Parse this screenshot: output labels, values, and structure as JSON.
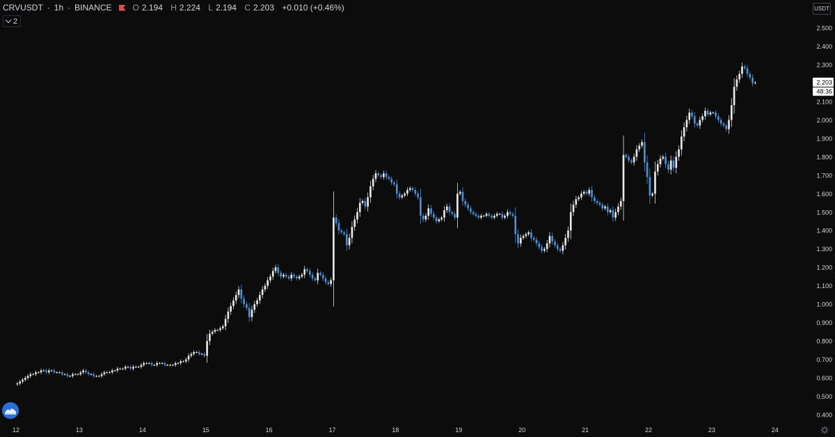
{
  "legend": {
    "symbol": "CRVUSDT",
    "interval": "1h",
    "exchange": "BINANCE",
    "separator": "·",
    "open_label": "O",
    "open": "2.194",
    "high_label": "H",
    "high": "2.224",
    "low_label": "L",
    "low": "2.194",
    "close_label": "C",
    "close": "2.203",
    "change": "+0.010 (+0.46%)"
  },
  "indicator_toggle": {
    "count": "2"
  },
  "currency_label": "USDT",
  "last_price": {
    "price": "2.203",
    "countdown": "48:36"
  },
  "icons": {
    "logo": "tradingview-logo-icon",
    "flag": "flag-icon",
    "chevron": "chevron-down-icon",
    "settings": "gear-icon"
  },
  "colors": {
    "background": "#0c0c0d",
    "up_candle": "#e8e8e8",
    "down_candle": "#4a90d9",
    "text": "#d1d4dc",
    "flag": "#e04f4f"
  },
  "chart_data": {
    "type": "candlestick",
    "title": "",
    "xlabel": "",
    "ylabel": "",
    "ylim": [
      0.38,
      2.55
    ],
    "y_ticks": [
      "0.400",
      "0.500",
      "0.600",
      "0.700",
      "0.800",
      "0.900",
      "1.000",
      "1.100",
      "1.200",
      "1.300",
      "1.400",
      "1.500",
      "1.600",
      "1.700",
      "1.800",
      "1.900",
      "2.000",
      "2.100",
      "2.200",
      "2.300",
      "2.400",
      "2.500"
    ],
    "x_ticks": [
      "12",
      "13",
      "14",
      "15",
      "16",
      "17",
      "18",
      "19",
      "20",
      "21",
      "22",
      "23",
      "24"
    ],
    "grid": false,
    "approx_hourly_closes_by_day": [
      {
        "day": "12",
        "closes": [
          0.57,
          0.58,
          0.59,
          0.6,
          0.61,
          0.62,
          0.62,
          0.63,
          0.63,
          0.64,
          0.64,
          0.63,
          0.64,
          0.64,
          0.63,
          0.63,
          0.63,
          0.62,
          0.62,
          0.61,
          0.61,
          0.62,
          0.62,
          0.62
        ]
      },
      {
        "day": "13",
        "closes": [
          0.63,
          0.64,
          0.63,
          0.62,
          0.62,
          0.61,
          0.61,
          0.61,
          0.62,
          0.63,
          0.63,
          0.63,
          0.64,
          0.64,
          0.65,
          0.65,
          0.65,
          0.66,
          0.66,
          0.65,
          0.66,
          0.66,
          0.66,
          0.67
        ]
      },
      {
        "day": "14",
        "closes": [
          0.68,
          0.68,
          0.68,
          0.67,
          0.67,
          0.68,
          0.68,
          0.68,
          0.67,
          0.67,
          0.67,
          0.67,
          0.68,
          0.68,
          0.69,
          0.69,
          0.7,
          0.72,
          0.73,
          0.74,
          0.74,
          0.73,
          0.73,
          0.72
        ]
      },
      {
        "day": "15",
        "closes": [
          0.8,
          0.84,
          0.85,
          0.86,
          0.86,
          0.87,
          0.88,
          0.92,
          0.96,
          0.99,
          1.02,
          1.05,
          1.08,
          1.03,
          1.0,
          0.98,
          0.93,
          0.97,
          1.0,
          1.02,
          1.05,
          1.08,
          1.1,
          1.13
        ]
      },
      {
        "day": "16",
        "closes": [
          1.15,
          1.18,
          1.2,
          1.17,
          1.15,
          1.16,
          1.15,
          1.14,
          1.16,
          1.15,
          1.14,
          1.15,
          1.16,
          1.19,
          1.18,
          1.16,
          1.14,
          1.13,
          1.17,
          1.16,
          1.14,
          1.12,
          1.11,
          1.13
        ]
      },
      {
        "day": "17",
        "closes": [
          1.47,
          1.44,
          1.4,
          1.39,
          1.38,
          1.32,
          1.36,
          1.42,
          1.46,
          1.5,
          1.55,
          1.56,
          1.53,
          1.58,
          1.64,
          1.68,
          1.71,
          1.7,
          1.69,
          1.71,
          1.69,
          1.68,
          1.66,
          1.65
        ]
      },
      {
        "day": "18",
        "closes": [
          1.6,
          1.58,
          1.59,
          1.6,
          1.62,
          1.63,
          1.62,
          1.6,
          1.58,
          1.48,
          1.46,
          1.48,
          1.52,
          1.49,
          1.47,
          1.45,
          1.46,
          1.47,
          1.51,
          1.53,
          1.5,
          1.49,
          1.47,
          1.6
        ]
      },
      {
        "day": "19",
        "closes": [
          1.61,
          1.56,
          1.54,
          1.52,
          1.5,
          1.49,
          1.48,
          1.47,
          1.48,
          1.48,
          1.49,
          1.48,
          1.47,
          1.48,
          1.49,
          1.49,
          1.47,
          1.48,
          1.5,
          1.49,
          1.48,
          1.38,
          1.33,
          1.36
        ]
      },
      {
        "day": "20",
        "closes": [
          1.37,
          1.38,
          1.39,
          1.36,
          1.35,
          1.33,
          1.31,
          1.29,
          1.3,
          1.33,
          1.37,
          1.34,
          1.32,
          1.3,
          1.29,
          1.32,
          1.36,
          1.4,
          1.5,
          1.54,
          1.57,
          1.58,
          1.6,
          1.61
        ]
      },
      {
        "day": "21",
        "closes": [
          1.6,
          1.62,
          1.58,
          1.56,
          1.55,
          1.54,
          1.52,
          1.53,
          1.5,
          1.51,
          1.47,
          1.5,
          1.53,
          1.56,
          1.81,
          1.8,
          1.78,
          1.77,
          1.8,
          1.84,
          1.86,
          1.88,
          1.77,
          1.69
        ]
      },
      {
        "day": "22",
        "closes": [
          1.59,
          1.6,
          1.72,
          1.76,
          1.79,
          1.8,
          1.76,
          1.73,
          1.78,
          1.74,
          1.8,
          1.84,
          1.91,
          1.96,
          2.0,
          2.04,
          2.02,
          1.98,
          1.97,
          2.0,
          2.02,
          2.05,
          2.03,
          2.04
        ]
      },
      {
        "day": "23",
        "closes": [
          2.04,
          2.02,
          2.0,
          1.98,
          1.97,
          1.95,
          2.0,
          2.08,
          2.18,
          2.22,
          2.25,
          2.29,
          2.28,
          2.25,
          2.23,
          2.2,
          2.203
        ]
      }
    ]
  }
}
